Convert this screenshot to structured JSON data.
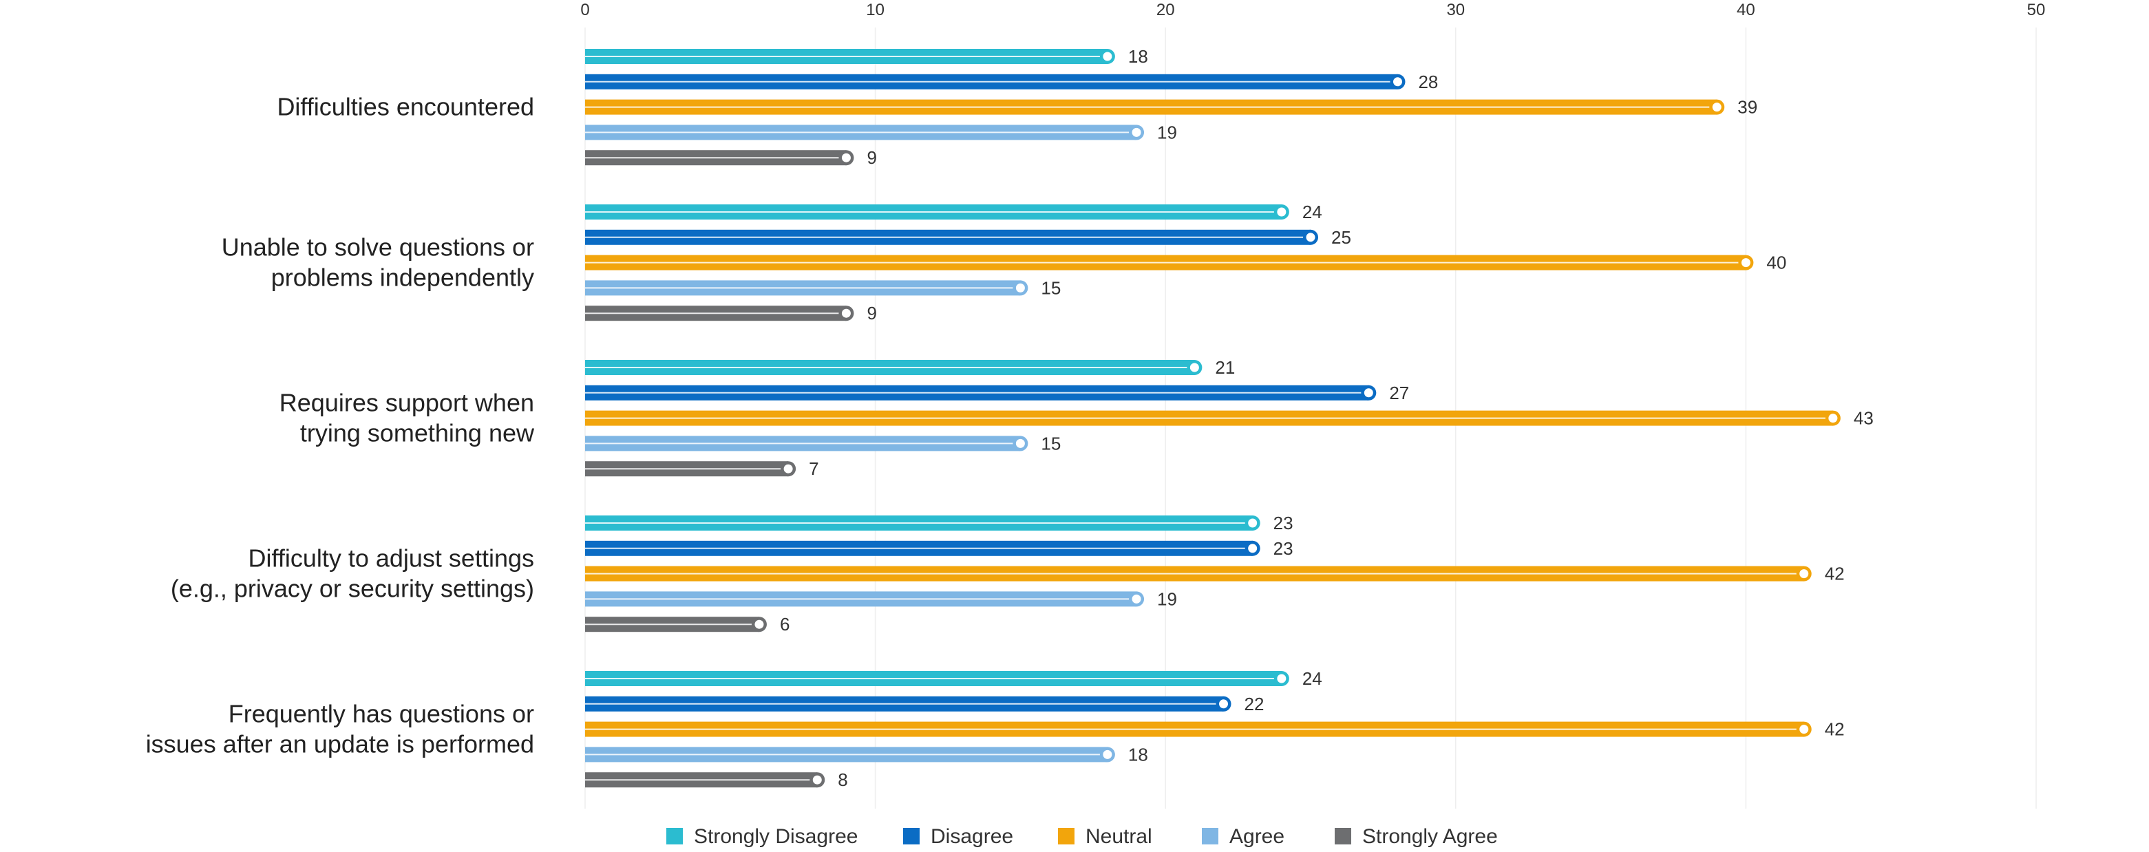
{
  "chart_data": {
    "type": "bar",
    "orientation": "horizontal",
    "categories": [
      [
        "Difficulties encountered"
      ],
      [
        "Unable to solve questions or",
        "problems independently"
      ],
      [
        "Requires support when",
        "trying something new"
      ],
      [
        "Difficulty to adjust settings",
        "(e.g., privacy or security settings)"
      ],
      [
        "Frequently has questions or",
        "issues after an update is performed"
      ]
    ],
    "series": [
      {
        "name": "Strongly Disagree",
        "color": "#2bbcd0",
        "values": [
          18,
          24,
          21,
          23,
          24
        ]
      },
      {
        "name": "Disagree",
        "color": "#0b6cc4",
        "values": [
          28,
          25,
          27,
          23,
          22
        ]
      },
      {
        "name": "Neutral",
        "color": "#f2a50c",
        "values": [
          39,
          40,
          43,
          42,
          42
        ]
      },
      {
        "name": "Agree",
        "color": "#7fb6e4",
        "values": [
          19,
          15,
          15,
          19,
          18
        ]
      },
      {
        "name": "Strongly Agree",
        "color": "#6d6e70",
        "values": [
          9,
          9,
          7,
          6,
          8
        ]
      }
    ],
    "xlim": [
      0,
      50
    ],
    "xticks": [
      0,
      10,
      20,
      30,
      40,
      50
    ],
    "x_axis_position": "top",
    "grid": true,
    "legend": "bottom-center",
    "title": "",
    "xlabel": "",
    "ylabel": ""
  }
}
